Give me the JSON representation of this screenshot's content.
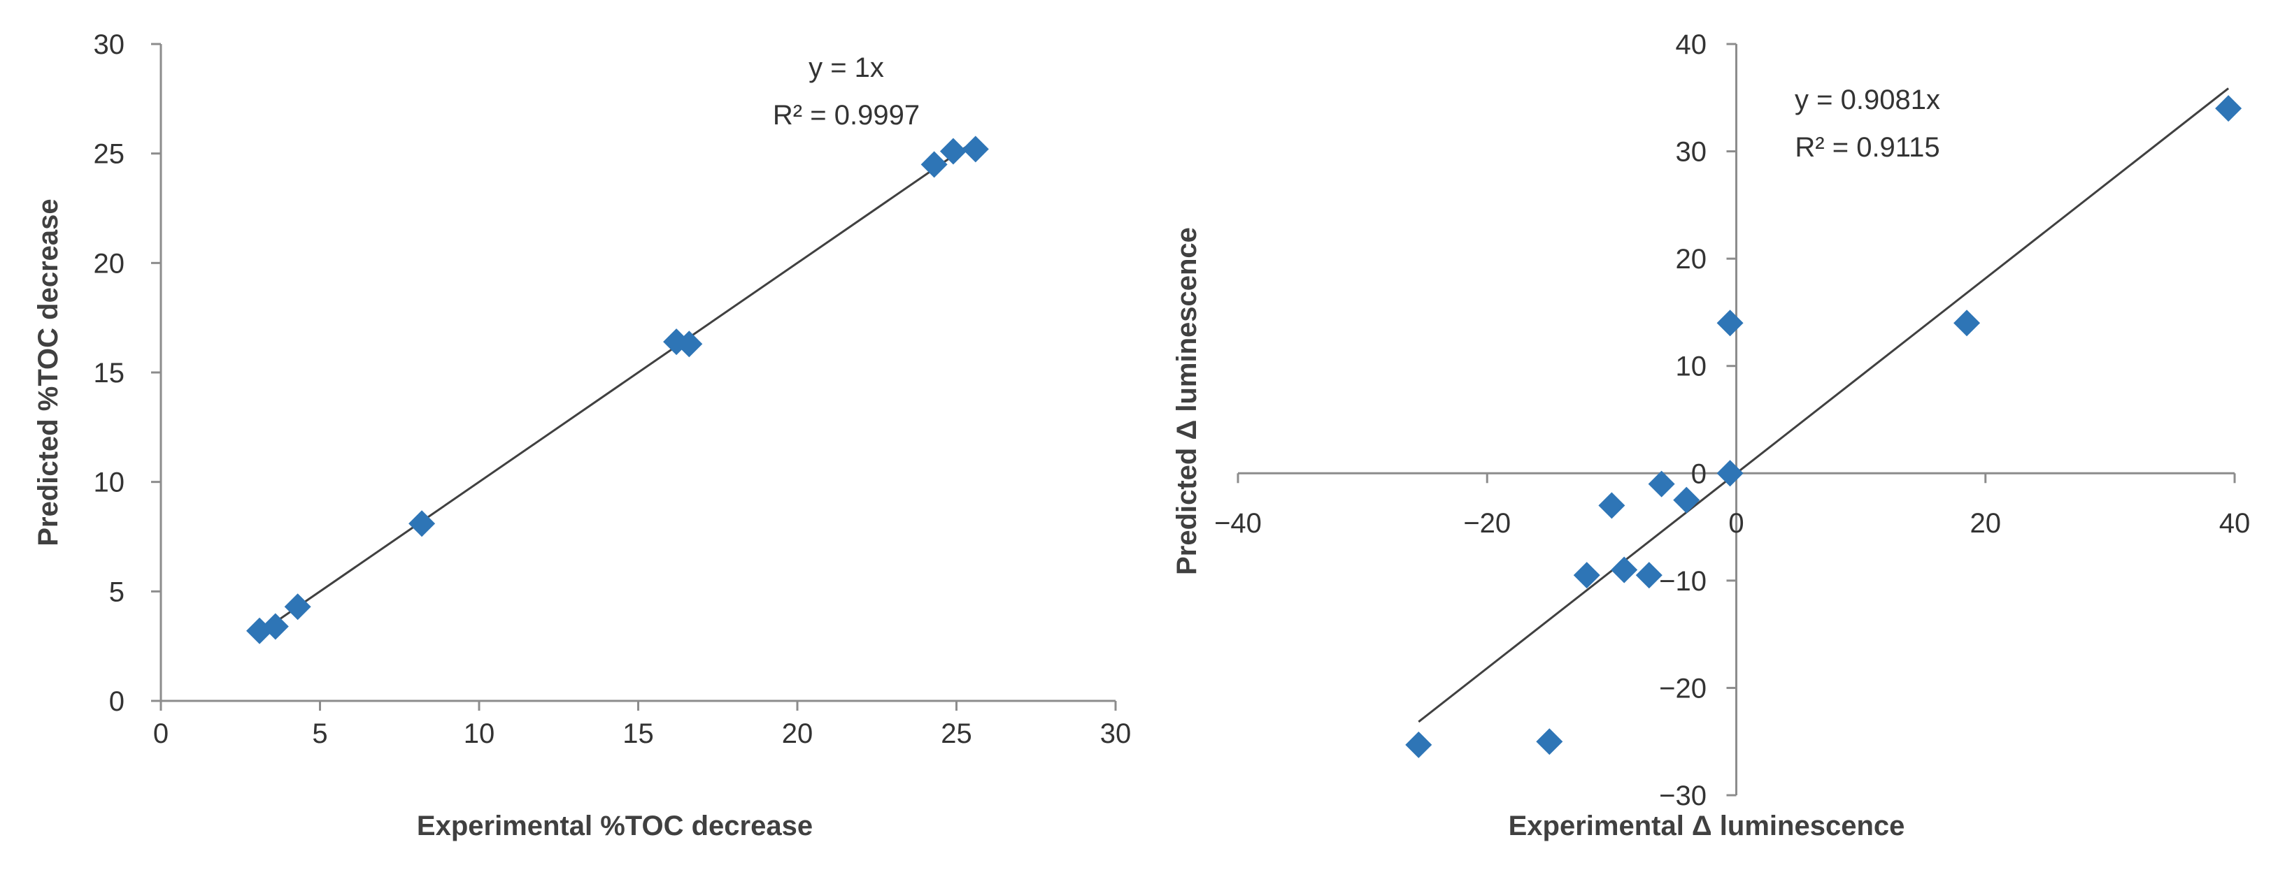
{
  "chart_data": [
    {
      "type": "scatter",
      "title": "",
      "xlabel": "Experimental %TOC decrease",
      "ylabel": "Predicted %TOC decrease",
      "xlim": [
        0,
        30
      ],
      "ylim": [
        0,
        30
      ],
      "xticks": [
        "0",
        "5",
        "10",
        "15",
        "20",
        "25",
        "30"
      ],
      "yticks": [
        "0",
        "5",
        "10",
        "15",
        "20",
        "25",
        "30"
      ],
      "grid": false,
      "legend": "none",
      "marker_color": "#2E75B6",
      "marker": "diamond",
      "x": [
        3.1,
        3.6,
        4.3,
        8.2,
        16.2,
        16.6,
        24.3,
        24.9,
        25.6
      ],
      "y": [
        3.2,
        3.4,
        4.3,
        8.1,
        16.4,
        16.3,
        24.5,
        25.1,
        25.2
      ],
      "trendline": {
        "slope": 1.0,
        "x_range": [
          3.1,
          25.6
        ],
        "color": "#404040"
      },
      "annotations": [
        "y = 1x",
        "R² = 0.9997"
      ]
    },
    {
      "type": "scatter",
      "title": "",
      "xlabel": "Experimental Δ luminescence",
      "ylabel": "Predicted Δ luminescence",
      "xlim": [
        -40,
        40
      ],
      "ylim": [
        -30,
        40
      ],
      "xticks": [
        "−40",
        "−20",
        "0",
        "20",
        "40"
      ],
      "yticks": [
        "−30",
        "−20",
        "−10",
        "0",
        "10",
        "20",
        "30",
        "40"
      ],
      "grid": false,
      "legend": "none",
      "axes_cross_at_zero": true,
      "marker_color": "#2E75B6",
      "marker": "diamond",
      "x": [
        -25.5,
        -15,
        -12,
        -10,
        -9,
        -7,
        -6,
        -4,
        -0.5,
        -0.5,
        18.5,
        39.5
      ],
      "y": [
        -25.3,
        -25,
        -9.5,
        -3,
        -9,
        -9.5,
        -1,
        -2.5,
        0,
        14,
        14,
        34
      ],
      "trendline": {
        "slope": 0.9081,
        "x_range": [
          -25.5,
          39.5
        ],
        "color": "#404040"
      },
      "annotations": [
        "y = 0.9081x",
        "R² = 0.9115"
      ]
    }
  ]
}
